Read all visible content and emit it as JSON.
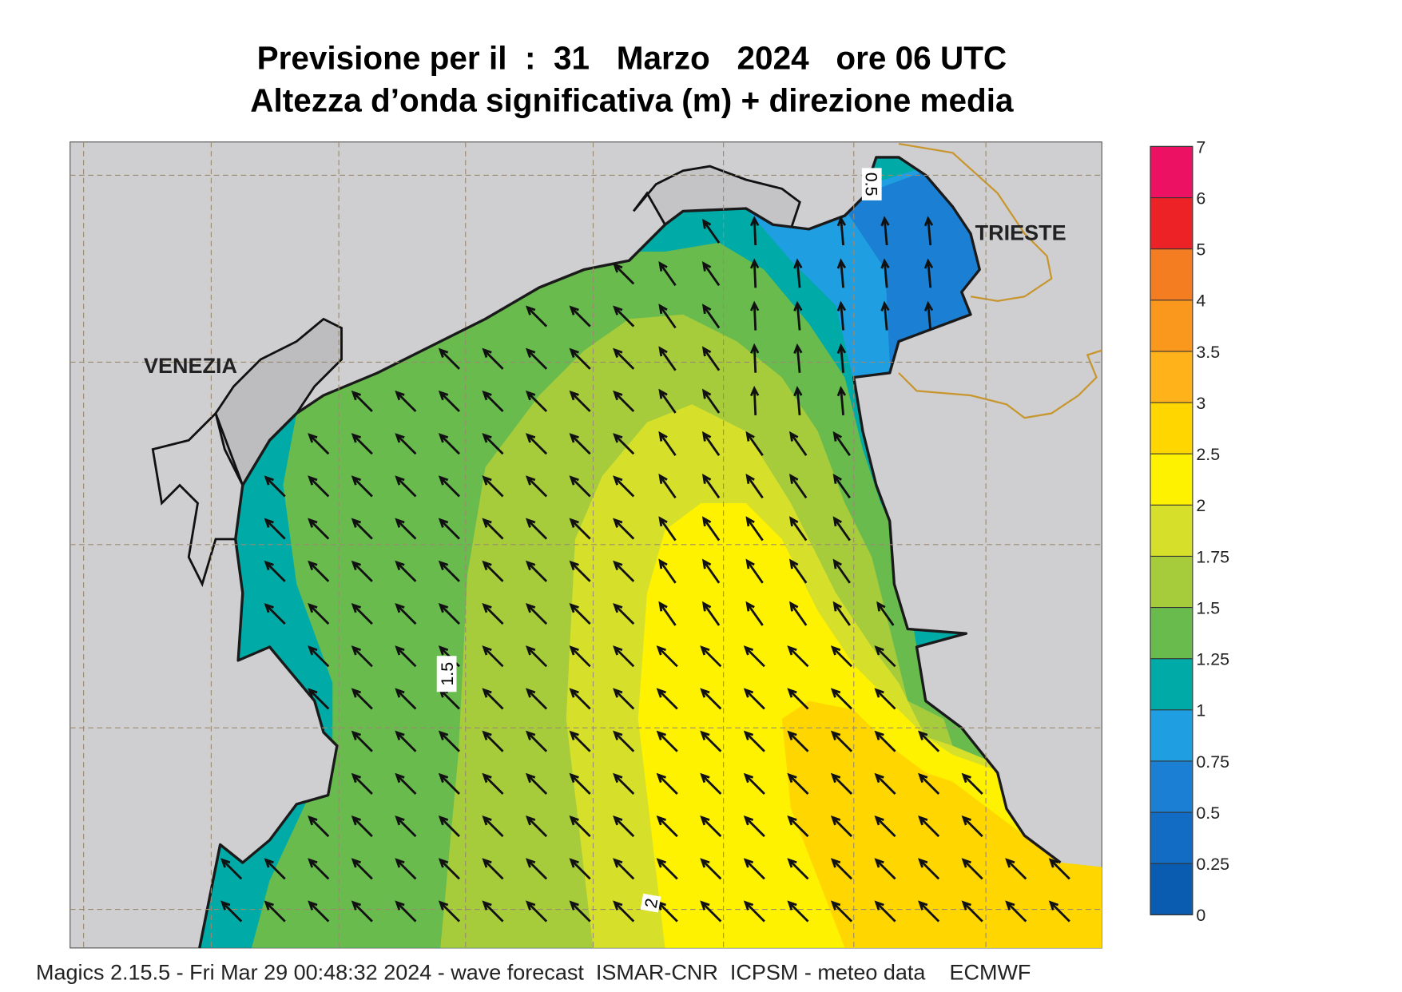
{
  "header": {
    "title": "Previsione per il  :  31   Marzo   2024   ore 06 UTC",
    "subtitle": "Altezza d’onda significativa (m) + direzione media"
  },
  "map": {
    "places": [
      "VENEZIA",
      "TRIESTE"
    ],
    "contour_labels": [
      "0.5",
      "1.5",
      "2"
    ]
  },
  "legend": {
    "levels": [
      0,
      0.25,
      0.5,
      0.75,
      1,
      1.25,
      1.5,
      1.75,
      2,
      2.5,
      3,
      3.5,
      4,
      5,
      6,
      7
    ],
    "colors": [
      "#0a5cb0",
      "#136cc4",
      "#1b80d3",
      "#1f9fe2",
      "#00aaa6",
      "#69bb4e",
      "#a7cc3b",
      "#d6e02a",
      "#fff200",
      "#ffd600",
      "#ffb21a",
      "#fa981e",
      "#f47d22",
      "#ec2226",
      "#ec1162"
    ]
  },
  "footer": "Magics 2.15.5 - Fri Mar 29 00:48:32 2024 - wave forecast  ISMAR-CNR  ICPSM - meteo data    ECMWF"
}
